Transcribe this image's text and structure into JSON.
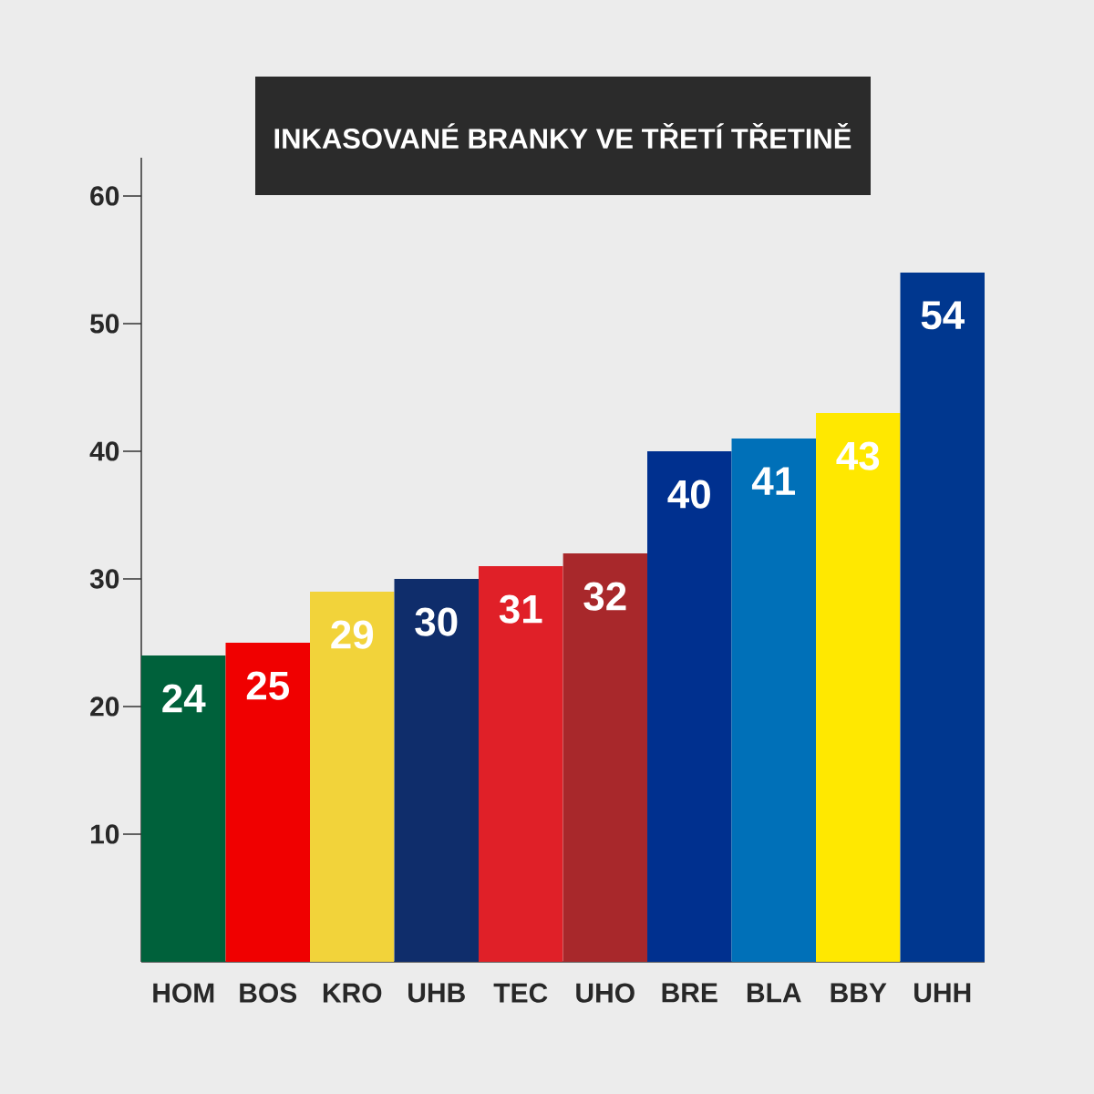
{
  "chart_data": {
    "type": "bar",
    "title": "INKASOVANÉ BRANKY VE TŘETÍ TŘETINĚ",
    "categories": [
      "HOM",
      "BOS",
      "KRO",
      "UHB",
      "TEC",
      "UHO",
      "BRE",
      "BLA",
      "BBY",
      "UHH"
    ],
    "values": [
      24,
      25,
      29,
      30,
      31,
      32,
      40,
      41,
      43,
      54
    ],
    "colors": [
      "#00613b",
      "#f00000",
      "#f2d33a",
      "#0f2d6b",
      "#e02028",
      "#a8282b",
      "#00308f",
      "#0070b8",
      "#ffe800",
      "#00378f"
    ],
    "ylim": [
      0,
      63
    ],
    "yticks": [
      10,
      20,
      30,
      40,
      50,
      60
    ],
    "data_labels": true,
    "grid": false
  }
}
